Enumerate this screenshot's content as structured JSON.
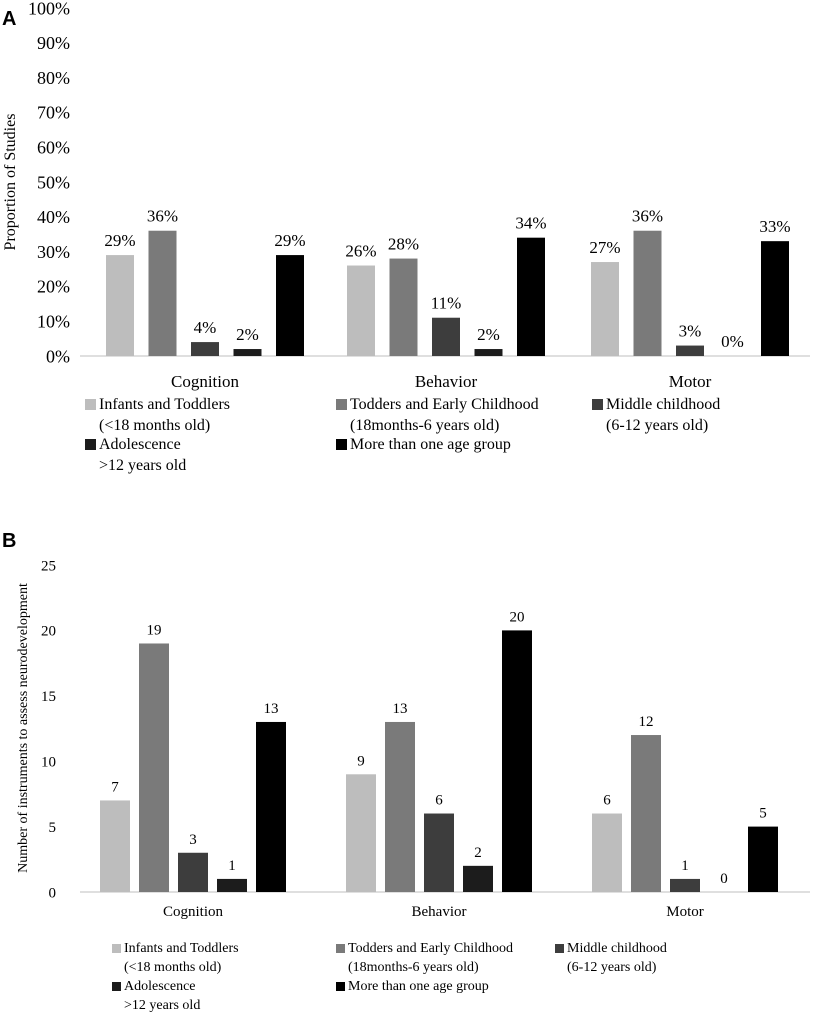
{
  "chart_data": [
    {
      "panel": "A",
      "type": "bar",
      "title": "",
      "xlabel": "",
      "ylabel": "Proportion of Studies",
      "ylim": [
        0,
        100
      ],
      "yticks": [
        "0%",
        "10%",
        "20%",
        "30%",
        "40%",
        "50%",
        "60%",
        "70%",
        "80%",
        "90%",
        "100%"
      ],
      "categories": [
        "Cognition",
        "Behavior",
        "Motor"
      ],
      "series": [
        {
          "name": "Infants and Toddlers (<18 months old)",
          "color": "#bdbdbd",
          "values": [
            29,
            26,
            27
          ],
          "labels": [
            "29%",
            "26%",
            "27%"
          ]
        },
        {
          "name": "Todders and Early Childhood (18months-6 years old)",
          "color": "#7a7a7a",
          "values": [
            36,
            28,
            36
          ],
          "labels": [
            "36%",
            "28%",
            "36%"
          ]
        },
        {
          "name": "Middle childhood (6-12 years old)",
          "color": "#3d3d3d",
          "values": [
            4,
            11,
            3
          ],
          "labels": [
            "4%",
            "11%",
            "3%"
          ]
        },
        {
          "name": "Adolescence >12 years old",
          "color": "#1c1c1c",
          "values": [
            2,
            2,
            0
          ],
          "labels": [
            "2%",
            "2%",
            "0%"
          ]
        },
        {
          "name": "More than one age group",
          "color": "#000000",
          "values": [
            29,
            34,
            33
          ],
          "labels": [
            "29%",
            "34%",
            "33%"
          ]
        }
      ],
      "legend": [
        {
          "line1": "Infants and Toddlers",
          "line2": "(<18 months old)",
          "color": "#bdbdbd"
        },
        {
          "line1": "Todders and Early Childhood",
          "line2": "(18months-6 years old)",
          "color": "#7a7a7a"
        },
        {
          "line1": "Middle childhood",
          "line2": "(6-12 years old)",
          "color": "#3d3d3d"
        },
        {
          "line1": "Adolescence",
          "line2": ">12 years old",
          "color": "#1c1c1c"
        },
        {
          "line1": "More than one age group",
          "line2": "",
          "color": "#000000"
        }
      ]
    },
    {
      "panel": "B",
      "type": "bar",
      "title": "",
      "xlabel": "",
      "ylabel": "Number of instruments to assess neurodevelopment",
      "ylim": [
        0,
        25
      ],
      "yticks": [
        "0",
        "5",
        "10",
        "15",
        "20",
        "25"
      ],
      "categories": [
        "Cognition",
        "Behavior",
        "Motor"
      ],
      "series": [
        {
          "name": "Infants and Toddlers (<18 months old)",
          "color": "#bdbdbd",
          "values": [
            7,
            9,
            6
          ],
          "labels": [
            "7",
            "9",
            "6"
          ]
        },
        {
          "name": "Todders and Early Childhood (18months-6 years old)",
          "color": "#7a7a7a",
          "values": [
            19,
            13,
            12
          ],
          "labels": [
            "19",
            "13",
            "12"
          ]
        },
        {
          "name": "Middle childhood (6-12 years old)",
          "color": "#3d3d3d",
          "values": [
            3,
            6,
            1
          ],
          "labels": [
            "3",
            "6",
            "1"
          ]
        },
        {
          "name": "Adolescence >12 years old",
          "color": "#1c1c1c",
          "values": [
            1,
            2,
            0
          ],
          "labels": [
            "1",
            "2",
            "0"
          ]
        },
        {
          "name": "More than one age group",
          "color": "#000000",
          "values": [
            13,
            20,
            5
          ],
          "labels": [
            "13",
            "20",
            "5"
          ]
        }
      ],
      "legend": [
        {
          "line1": "Infants and Toddlers",
          "line2": "(<18 months old)",
          "color": "#bdbdbd"
        },
        {
          "line1": "Todders and Early Childhood",
          "line2": "(18months-6 years old)",
          "color": "#7a7a7a"
        },
        {
          "line1": "Middle childhood",
          "line2": "(6-12 years old)",
          "color": "#3d3d3d"
        },
        {
          "line1": "Adolescence",
          "line2": ">12 years old",
          "color": "#1c1c1c"
        },
        {
          "line1": "More than one age group",
          "line2": "",
          "color": "#000000"
        }
      ]
    }
  ]
}
